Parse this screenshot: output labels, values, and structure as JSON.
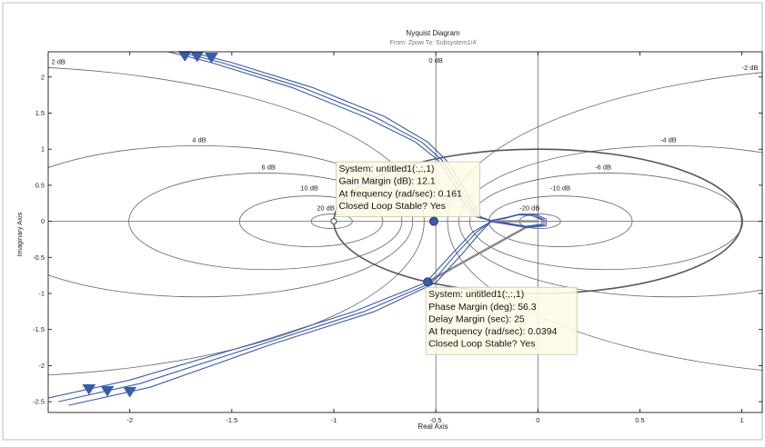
{
  "chart_data": {
    "type": "line",
    "title": "Nyquist Diagram",
    "subtitle": "From: Zpow   To: Subsystem1/4",
    "xlabel": "Real Axis",
    "ylabel": "Imaginary Axis",
    "xlim": [
      -2.4,
      1.1
    ],
    "ylim": [
      -2.65,
      2.35
    ],
    "xticks": [
      -2,
      -1.5,
      -1,
      -0.5,
      0,
      0.5,
      1
    ],
    "yticks": [
      -2.5,
      -2,
      -1.5,
      -1,
      -0.5,
      0,
      0.5,
      1,
      1.5,
      2
    ],
    "xtick_labels": [
      "-2",
      "-1.5",
      "-1",
      "-0.5",
      "0",
      "0.5",
      "1"
    ],
    "ytick_labels": [
      "-2.5",
      "-2",
      "-1.5",
      "-1",
      "-0.5",
      "0",
      "0.5",
      "1",
      "1.5",
      "2"
    ],
    "grid": true,
    "m_circles": [
      {
        "db": 2,
        "label": "2 dB",
        "label_at": [
          -2.35,
          2.18
        ]
      },
      {
        "db": 4,
        "label": "4 dB",
        "label_at": [
          -1.66,
          1.1
        ]
      },
      {
        "db": 6,
        "label": "6 dB",
        "label_at": [
          -1.32,
          0.72
        ]
      },
      {
        "db": 10,
        "label": "10 dB",
        "label_at": [
          -1.12,
          0.43
        ]
      },
      {
        "db": 20,
        "label": "20 dB",
        "label_at": [
          -1.04,
          0.15
        ]
      },
      {
        "db": -2,
        "label": "-2 dB",
        "label_at": [
          1.04,
          2.1
        ]
      },
      {
        "db": -4,
        "label": "-4 dB",
        "label_at": [
          0.64,
          1.1
        ]
      },
      {
        "db": -6,
        "label": "-6 dB",
        "label_at": [
          0.32,
          0.72
        ]
      },
      {
        "db": -10,
        "label": "-10 dB",
        "label_at": [
          0.11,
          0.43
        ]
      },
      {
        "db": -20,
        "label": "-20 dB",
        "label_at": [
          -0.04,
          0.15
        ]
      }
    ],
    "zero_db_label": {
      "label": "0 dB",
      "label_at": [
        -0.5,
        2.2
      ]
    },
    "unit_circle": {
      "center": [
        0,
        0
      ],
      "radius": 1
    },
    "series": [
      {
        "points": [
          [
            -1.95,
            2.45
          ],
          [
            -1.6,
            2.2
          ],
          [
            -1.2,
            1.85
          ],
          [
            -0.85,
            1.45
          ],
          [
            -0.6,
            1.1
          ],
          [
            -0.49,
            0.85
          ],
          [
            -0.42,
            0.55
          ],
          [
            -0.36,
            0.25
          ],
          [
            -0.3,
            0.06
          ],
          [
            -0.23,
            0.01
          ],
          [
            -0.16,
            0.04
          ],
          [
            -0.1,
            0.09
          ],
          [
            -0.03,
            0.08
          ],
          [
            0.02,
            0.02
          ],
          [
            0.02,
            -0.04
          ],
          [
            -0.06,
            -0.07
          ],
          [
            -0.16,
            -0.02
          ],
          [
            -0.23,
            -0.005
          ],
          [
            -0.32,
            -0.15
          ],
          [
            -0.42,
            -0.45
          ],
          [
            -0.55,
            -0.85
          ],
          [
            -0.9,
            -1.25
          ],
          [
            -1.4,
            -1.7
          ],
          [
            -2.0,
            -2.2
          ],
          [
            -2.4,
            -2.45
          ]
        ],
        "arrows_x": [
          -1.73,
          -2.2
        ]
      },
      {
        "points": [
          [
            -1.9,
            2.45
          ],
          [
            -1.55,
            2.2
          ],
          [
            -1.15,
            1.85
          ],
          [
            -0.8,
            1.45
          ],
          [
            -0.57,
            1.1
          ],
          [
            -0.47,
            0.85
          ],
          [
            -0.4,
            0.55
          ],
          [
            -0.34,
            0.25
          ],
          [
            -0.29,
            0.06
          ],
          [
            -0.23,
            0.01
          ],
          [
            -0.16,
            0.05
          ],
          [
            -0.09,
            0.1
          ],
          [
            -0.02,
            0.09
          ],
          [
            0.03,
            0.02
          ],
          [
            0.03,
            -0.05
          ],
          [
            -0.06,
            -0.08
          ],
          [
            -0.16,
            -0.03
          ],
          [
            -0.23,
            -0.005
          ],
          [
            -0.3,
            -0.15
          ],
          [
            -0.4,
            -0.45
          ],
          [
            -0.52,
            -0.85
          ],
          [
            -0.85,
            -1.25
          ],
          [
            -1.35,
            -1.7
          ],
          [
            -1.95,
            -2.25
          ],
          [
            -2.35,
            -2.5
          ]
        ],
        "arrows_x": [
          -1.67,
          -2.11
        ]
      },
      {
        "points": [
          [
            -1.85,
            2.45
          ],
          [
            -1.5,
            2.2
          ],
          [
            -1.1,
            1.85
          ],
          [
            -0.75,
            1.45
          ],
          [
            -0.54,
            1.1
          ],
          [
            -0.45,
            0.85
          ],
          [
            -0.38,
            0.55
          ],
          [
            -0.32,
            0.25
          ],
          [
            -0.28,
            0.06
          ],
          [
            -0.23,
            0.01
          ],
          [
            -0.15,
            0.05
          ],
          [
            -0.08,
            0.1
          ],
          [
            -0.01,
            0.1
          ],
          [
            0.04,
            0.03
          ],
          [
            0.04,
            -0.06
          ],
          [
            -0.05,
            -0.09
          ],
          [
            -0.15,
            -0.04
          ],
          [
            -0.23,
            -0.005
          ],
          [
            -0.28,
            -0.15
          ],
          [
            -0.37,
            -0.45
          ],
          [
            -0.5,
            -0.85
          ],
          [
            -0.8,
            -1.25
          ],
          [
            -1.3,
            -1.7
          ],
          [
            -1.9,
            -2.3
          ],
          [
            -2.3,
            -2.55
          ]
        ],
        "arrows_x": [
          -1.6,
          -2.0
        ]
      }
    ],
    "critical_point": [
      -1,
      0
    ],
    "margin_lines": [
      [
        [
          -0.23,
          0.0
        ],
        [
          0.0,
          0.0
        ]
      ],
      [
        [
          -0.54,
          -0.84
        ],
        [
          -0.05,
          -0.07
        ]
      ]
    ],
    "datatips": [
      {
        "point": [
          -0.51,
          0.0
        ],
        "anchor": [
          -0.98,
          0.8
        ],
        "lines": [
          "System: untitled1(:,:,1)",
          "Gain Margin (dB): 12.1",
          "At frequency (rad/sec): 0.161",
          "Closed Loop Stable? Yes"
        ]
      },
      {
        "point": [
          -0.54,
          -0.84
        ],
        "anchor": [
          -0.54,
          -0.94
        ],
        "lines": [
          "System: untitled1(:,:,1)",
          "Phase Margin (deg): 56.3",
          "Delay Margin (sec): 25",
          "At frequency (rad/sec): 0.0394",
          "Closed Loop Stable? Yes"
        ]
      }
    ],
    "colors": {
      "series": "#3b5ba8",
      "grid": "#666666",
      "axes": "#000000",
      "datatip_bg": "#fffbe6",
      "datatip_border": "#c8c4a8",
      "margin_line": "#888888"
    }
  }
}
